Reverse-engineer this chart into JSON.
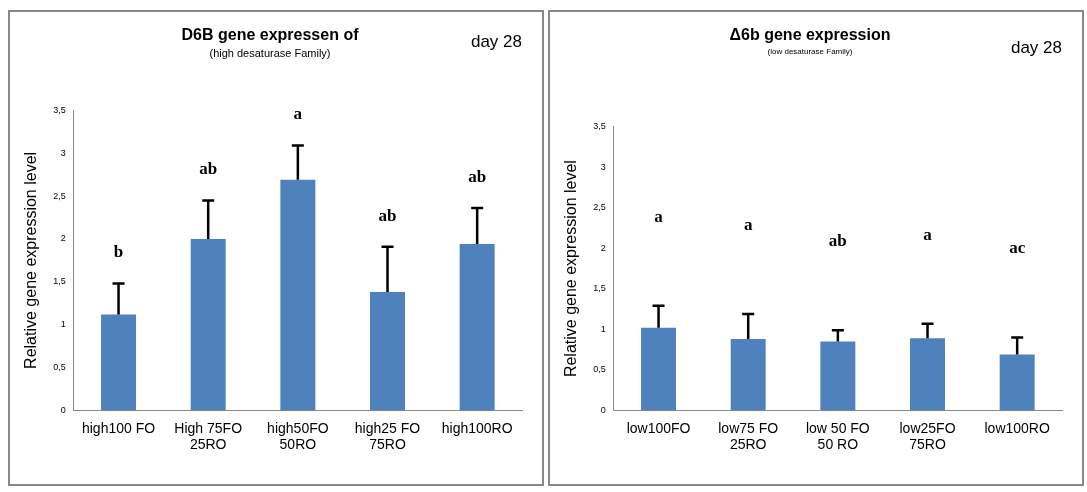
{
  "chart_data": [
    {
      "type": "bar",
      "title": "D6B gene expressen of",
      "subtitle": "(high desaturase Family)",
      "ylabel": "Relative gene expression level",
      "categories": [
        "high100 FO",
        "High 75FO\n25RO",
        "high50FO\n50RO",
        "high25 FO\n75RO",
        "high100RO"
      ],
      "values": [
        1.12,
        2.0,
        2.69,
        1.38,
        1.94
      ],
      "color": "#4f81bd",
      "errors": [
        [
          1.12,
          1.48
        ],
        [
          2.0,
          2.45
        ],
        [
          2.69,
          3.09
        ],
        [
          1.38,
          1.91
        ],
        [
          1.94,
          2.36
        ]
      ],
      "ylim": [
        0,
        3.5
      ],
      "yticks": [
        0,
        {
          "value": 0.5,
          "label": "0,5"
        },
        1,
        {
          "value": 1.5,
          "label": "1,5"
        },
        2,
        {
          "value": 2.5,
          "label": "2,5"
        },
        3,
        {
          "value": 3.5,
          "label": "3,5"
        }
      ],
      "grid": false,
      "legend": false,
      "annotations": [
        "day 28",
        "b",
        "ab",
        "a",
        "ab",
        "ab"
      ]
    },
    {
      "type": "bar",
      "title": "Δ6b gene expression",
      "subtitle": "(low desaturase Family)",
      "ylabel": "Relative gene expression level",
      "categories": [
        "low100FO",
        "low75 FO\n25RO",
        "low 50 FO\n50 RO",
        "low25FO\n75RO",
        "low100RO"
      ],
      "values": [
        1.02,
        0.88,
        0.85,
        0.89,
        0.69
      ],
      "color": "#4f81bd",
      "errors": [
        [
          1.02,
          1.29
        ],
        [
          0.88,
          1.19
        ],
        [
          0.85,
          0.99
        ],
        [
          0.89,
          1.07
        ],
        [
          0.69,
          0.9
        ]
      ],
      "ylim": [
        0,
        3.5
      ],
      "yticks": [
        0,
        {
          "value": 0.5,
          "label": "0,5"
        },
        1,
        {
          "value": 1.5,
          "label": "1,5"
        },
        2,
        {
          "value": 2.5,
          "label": "2,5"
        },
        3,
        {
          "value": 3.5,
          "label": "3,5"
        }
      ],
      "grid": false,
      "legend": false,
      "annotations": [
        "day 28",
        "a",
        "a",
        "ab",
        "a",
        "ac"
      ]
    }
  ]
}
